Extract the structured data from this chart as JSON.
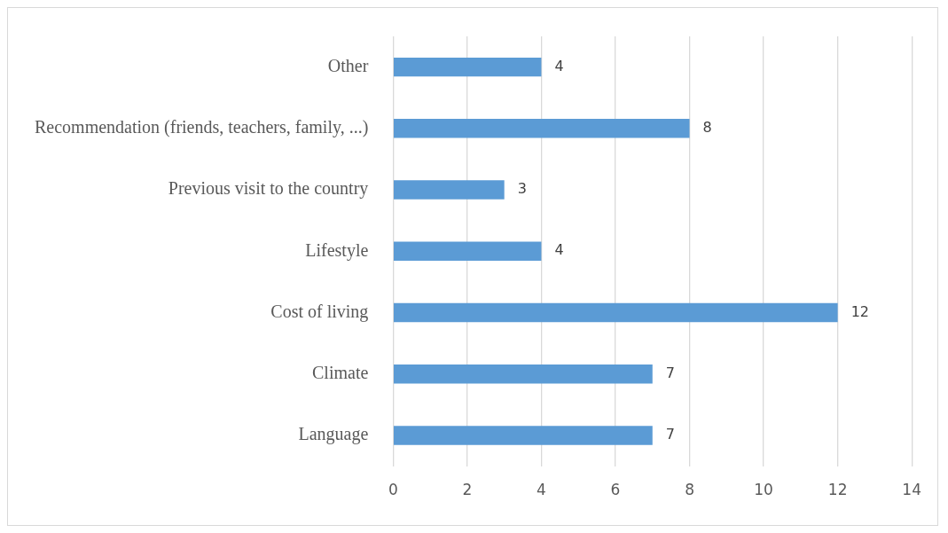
{
  "chart_data": {
    "type": "bar",
    "orientation": "horizontal",
    "categories": [
      "Other",
      "Recommendation (friends, teachers, family, ...)",
      "Previous visit to the country",
      "Lifestyle",
      "Cost of living",
      "Climate",
      "Language"
    ],
    "values": [
      4,
      8,
      3,
      4,
      12,
      7,
      7
    ],
    "color": "#5b9bd5",
    "xlim": [
      0,
      14
    ],
    "xticks": [
      0,
      2,
      4,
      6,
      8,
      10,
      12,
      14
    ],
    "grid": "x",
    "data_labels": true,
    "legend": false
  }
}
